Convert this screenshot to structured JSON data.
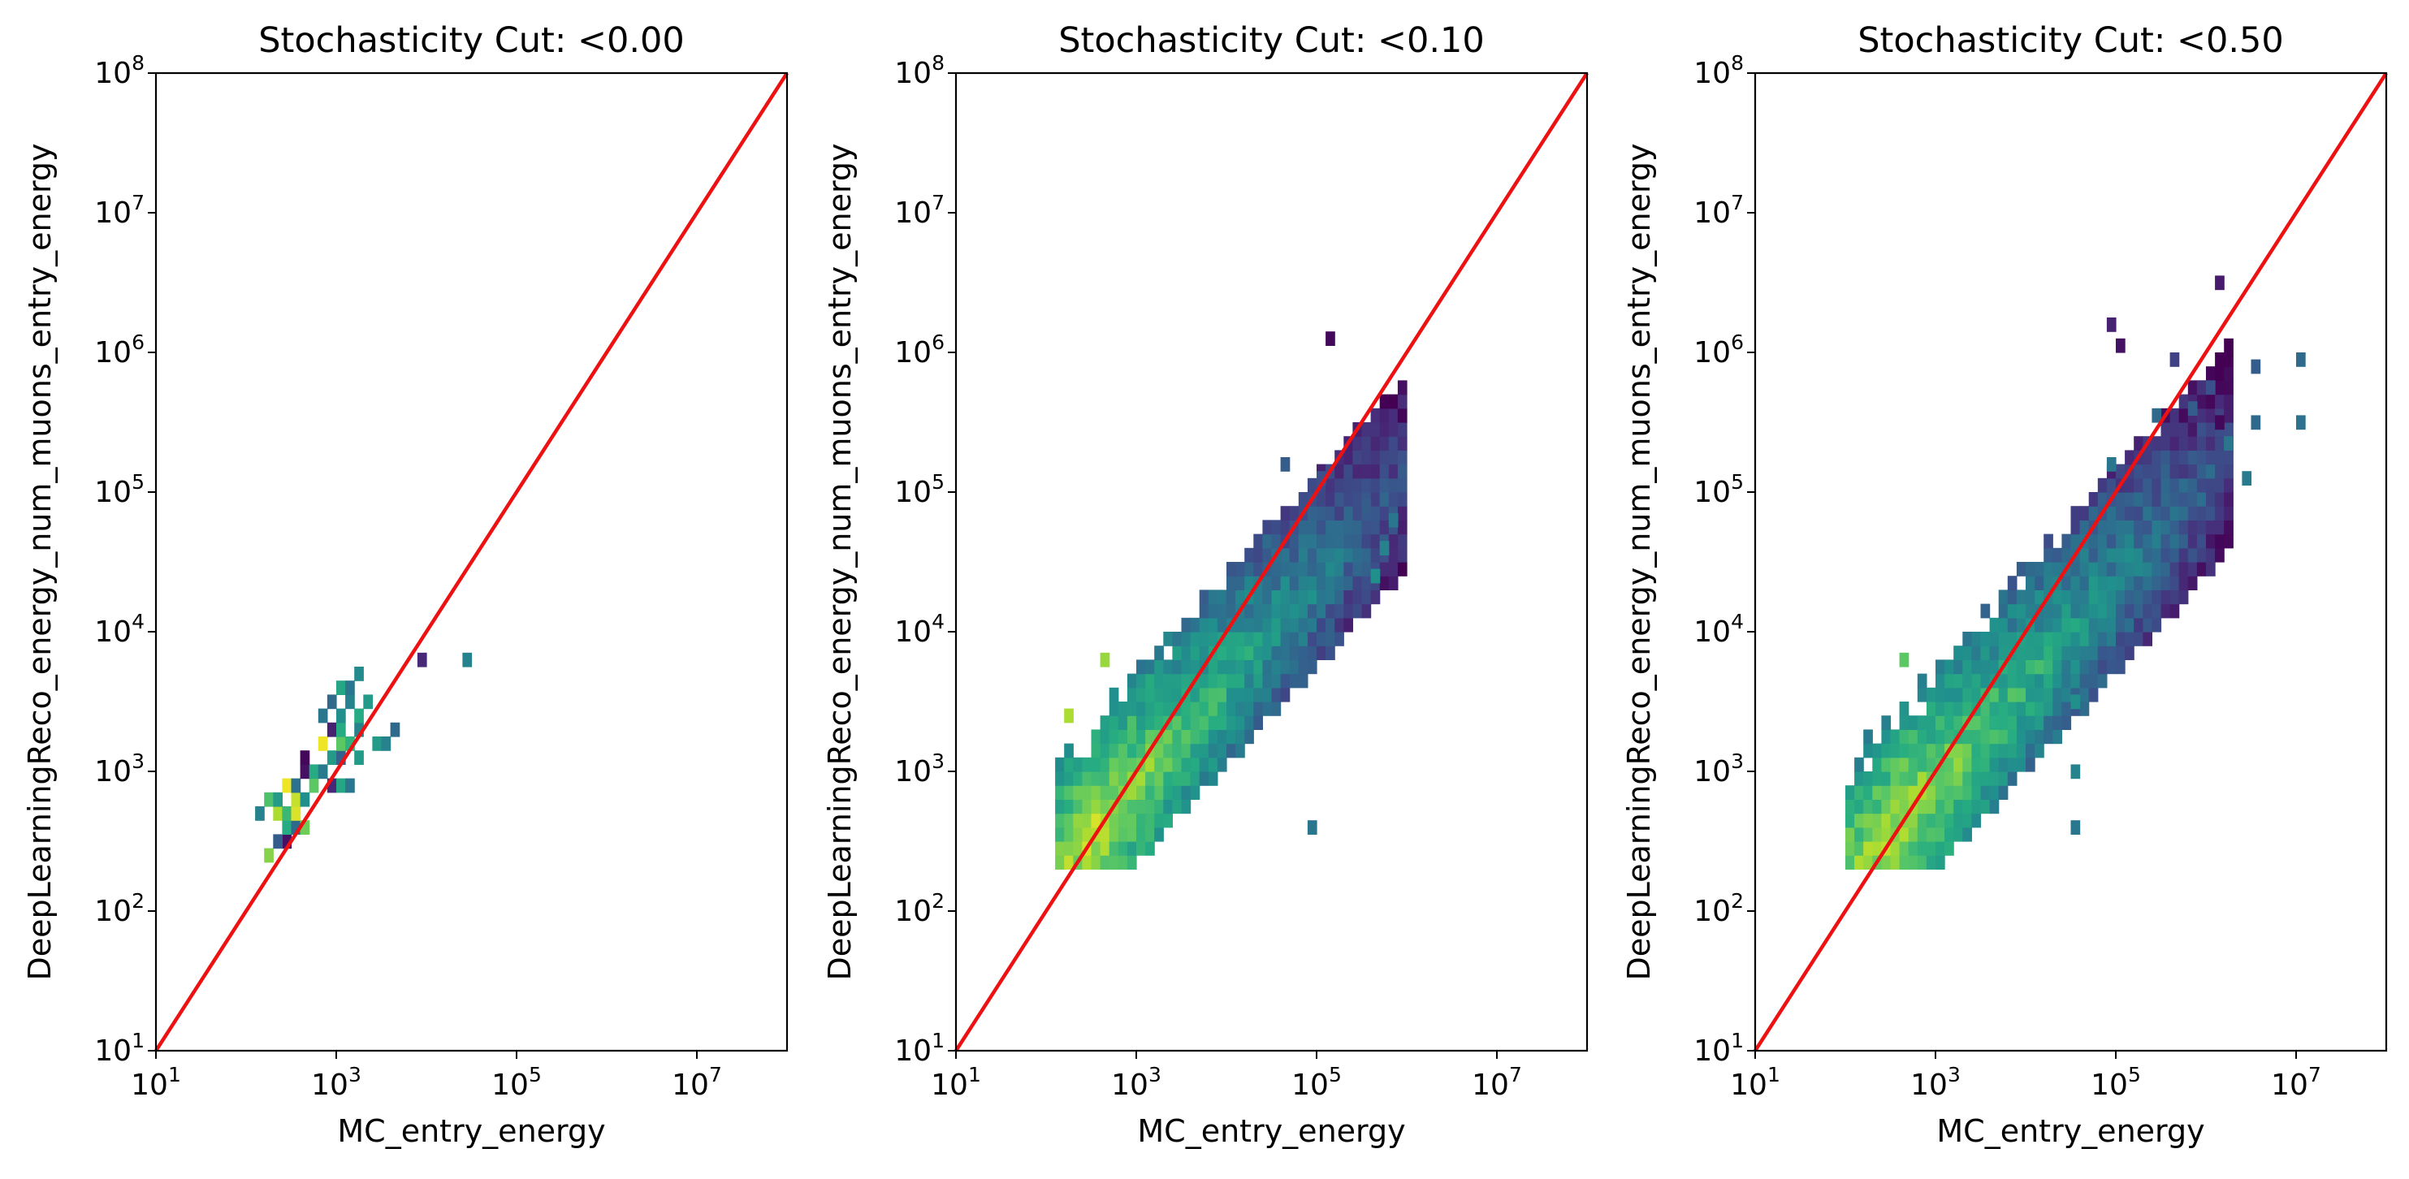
{
  "chart_data": [
    {
      "type": "heatmap",
      "title": "Stochasticity Cut: <0.00",
      "xlabel": "MC_entry_energy",
      "ylabel": "DeepLearningReco_energy_num_muons_entry_energy",
      "x_scale": "log",
      "y_scale": "log",
      "xlim": [
        10,
        100000000
      ],
      "ylim": [
        10,
        100000000
      ],
      "x_ticks": [
        {
          "base": "10",
          "exp": "1"
        },
        {
          "base": "10",
          "exp": "3"
        },
        {
          "base": "10",
          "exp": "5"
        },
        {
          "base": "10",
          "exp": "7"
        }
      ],
      "y_ticks": [
        {
          "base": "10",
          "exp": "1"
        },
        {
          "base": "10",
          "exp": "2"
        },
        {
          "base": "10",
          "exp": "3"
        },
        {
          "base": "10",
          "exp": "4"
        },
        {
          "base": "10",
          "exp": "5"
        },
        {
          "base": "10",
          "exp": "6"
        },
        {
          "base": "10",
          "exp": "7"
        },
        {
          "base": "10",
          "exp": "8"
        }
      ],
      "reference_line": {
        "from": [
          10,
          10
        ],
        "to": [
          100000000,
          100000000
        ],
        "color": "#ee1111"
      },
      "colormap": "viridis",
      "bins": {
        "log10_step": 0.1
      },
      "cells": [
        {
          "x": 2.25,
          "y": 2.4,
          "v": 0.82
        },
        {
          "x": 2.45,
          "y": 2.5,
          "v": 0.05
        },
        {
          "x": 2.35,
          "y": 2.5,
          "v": 0.3
        },
        {
          "x": 2.45,
          "y": 2.6,
          "v": 0.62
        },
        {
          "x": 2.55,
          "y": 2.6,
          "v": 0.35
        },
        {
          "x": 2.65,
          "y": 2.6,
          "v": 0.78
        },
        {
          "x": 2.15,
          "y": 2.7,
          "v": 0.45
        },
        {
          "x": 2.35,
          "y": 2.7,
          "v": 0.88
        },
        {
          "x": 2.45,
          "y": 2.7,
          "v": 0.68
        },
        {
          "x": 2.55,
          "y": 2.7,
          "v": 0.95
        },
        {
          "x": 2.25,
          "y": 2.8,
          "v": 0.72
        },
        {
          "x": 2.35,
          "y": 2.8,
          "v": 0.55
        },
        {
          "x": 2.55,
          "y": 2.8,
          "v": 0.92
        },
        {
          "x": 2.65,
          "y": 2.8,
          "v": 0.5
        },
        {
          "x": 2.45,
          "y": 2.9,
          "v": 0.98
        },
        {
          "x": 2.55,
          "y": 2.9,
          "v": 0.38
        },
        {
          "x": 2.75,
          "y": 2.9,
          "v": 0.75
        },
        {
          "x": 2.65,
          "y": 3.0,
          "v": 0.05
        },
        {
          "x": 2.75,
          "y": 3.0,
          "v": 0.62
        },
        {
          "x": 2.85,
          "y": 3.0,
          "v": 0.42
        },
        {
          "x": 2.95,
          "y": 2.9,
          "v": 0.12
        },
        {
          "x": 3.05,
          "y": 2.9,
          "v": 0.6
        },
        {
          "x": 3.15,
          "y": 2.9,
          "v": 0.4
        },
        {
          "x": 2.65,
          "y": 3.1,
          "v": 0.02
        },
        {
          "x": 2.95,
          "y": 3.1,
          "v": 0.55
        },
        {
          "x": 3.05,
          "y": 3.1,
          "v": 0.32
        },
        {
          "x": 3.25,
          "y": 3.1,
          "v": 0.55
        },
        {
          "x": 2.85,
          "y": 3.2,
          "v": 0.98
        },
        {
          "x": 3.05,
          "y": 3.2,
          "v": 0.75
        },
        {
          "x": 3.15,
          "y": 3.2,
          "v": 0.65
        },
        {
          "x": 2.95,
          "y": 3.3,
          "v": 0.1
        },
        {
          "x": 3.05,
          "y": 3.3,
          "v": 0.62
        },
        {
          "x": 3.25,
          "y": 3.3,
          "v": 0.45
        },
        {
          "x": 3.45,
          "y": 3.2,
          "v": 0.55
        },
        {
          "x": 3.65,
          "y": 3.3,
          "v": 0.35
        },
        {
          "x": 3.55,
          "y": 3.2,
          "v": 0.45
        },
        {
          "x": 2.85,
          "y": 3.4,
          "v": 0.4
        },
        {
          "x": 3.05,
          "y": 3.4,
          "v": 0.5
        },
        {
          "x": 3.25,
          "y": 3.4,
          "v": 0.62
        },
        {
          "x": 2.95,
          "y": 3.5,
          "v": 0.35
        },
        {
          "x": 3.15,
          "y": 3.5,
          "v": 0.45
        },
        {
          "x": 3.35,
          "y": 3.5,
          "v": 0.55
        },
        {
          "x": 3.05,
          "y": 3.6,
          "v": 0.6
        },
        {
          "x": 3.15,
          "y": 3.6,
          "v": 0.4
        },
        {
          "x": 3.25,
          "y": 3.7,
          "v": 0.48
        },
        {
          "x": 3.95,
          "y": 3.8,
          "v": 0.12
        },
        {
          "x": 4.45,
          "y": 3.8,
          "v": 0.45
        }
      ]
    },
    {
      "type": "heatmap",
      "title": "Stochasticity Cut: <0.10",
      "xlabel": "MC_entry_energy",
      "ylabel": "DeepLearningReco_energy_num_muons_entry_energy",
      "x_scale": "log",
      "y_scale": "log",
      "xlim": [
        10,
        100000000
      ],
      "ylim": [
        10,
        100000000
      ],
      "x_ticks": [
        {
          "base": "10",
          "exp": "1"
        },
        {
          "base": "10",
          "exp": "3"
        },
        {
          "base": "10",
          "exp": "5"
        },
        {
          "base": "10",
          "exp": "7"
        }
      ],
      "y_ticks": [
        {
          "base": "10",
          "exp": "1"
        },
        {
          "base": "10",
          "exp": "2"
        },
        {
          "base": "10",
          "exp": "3"
        },
        {
          "base": "10",
          "exp": "4"
        },
        {
          "base": "10",
          "exp": "5"
        },
        {
          "base": "10",
          "exp": "6"
        },
        {
          "base": "10",
          "exp": "7"
        },
        {
          "base": "10",
          "exp": "8"
        }
      ],
      "reference_line": {
        "from": [
          10,
          10
        ],
        "to": [
          100000000,
          100000000
        ],
        "color": "#ee1111"
      },
      "colormap": "viridis",
      "bins": {
        "log10_step": 0.1
      },
      "density_profile": {
        "x_range": [
          2.1,
          6.0
        ],
        "y_low_offset": -0.45,
        "y_high_offset": 0.75,
        "slope": 0.72,
        "intercept": 0.75,
        "peak_x": 2.6
      },
      "cells": [
        {
          "x": 5.15,
          "y": 6.1,
          "v": 0.02
        },
        {
          "x": 4.65,
          "y": 5.2,
          "v": 0.3
        },
        {
          "x": 5.05,
          "y": 5.1,
          "v": 0.25
        },
        {
          "x": 5.55,
          "y": 4.9,
          "v": 0.3
        },
        {
          "x": 5.85,
          "y": 4.8,
          "v": 0.4
        },
        {
          "x": 5.75,
          "y": 4.6,
          "v": 0.45
        },
        {
          "x": 5.65,
          "y": 4.4,
          "v": 0.5
        },
        {
          "x": 4.95,
          "y": 2.6,
          "v": 0.4
        },
        {
          "x": 2.65,
          "y": 3.8,
          "v": 0.85
        },
        {
          "x": 2.25,
          "y": 3.4,
          "v": 0.88
        }
      ]
    },
    {
      "type": "heatmap",
      "title": "Stochasticity Cut: <0.50",
      "xlabel": "MC_entry_energy",
      "ylabel": "DeepLearningReco_energy_num_muons_entry_energy",
      "x_scale": "log",
      "y_scale": "log",
      "xlim": [
        10,
        100000000
      ],
      "ylim": [
        10,
        100000000
      ],
      "x_ticks": [
        {
          "base": "10",
          "exp": "1"
        },
        {
          "base": "10",
          "exp": "3"
        },
        {
          "base": "10",
          "exp": "5"
        },
        {
          "base": "10",
          "exp": "7"
        }
      ],
      "y_ticks": [
        {
          "base": "10",
          "exp": "1"
        },
        {
          "base": "10",
          "exp": "2"
        },
        {
          "base": "10",
          "exp": "3"
        },
        {
          "base": "10",
          "exp": "4"
        },
        {
          "base": "10",
          "exp": "5"
        },
        {
          "base": "10",
          "exp": "6"
        },
        {
          "base": "10",
          "exp": "7"
        },
        {
          "base": "10",
          "exp": "8"
        }
      ],
      "reference_line": {
        "from": [
          10,
          10
        ],
        "to": [
          100000000,
          100000000
        ],
        "color": "#ee1111"
      },
      "colormap": "viridis",
      "bins": {
        "log10_step": 0.1
      },
      "density_profile": {
        "x_range": [
          2.0,
          6.3
        ],
        "y_low_offset": -0.5,
        "y_high_offset": 0.8,
        "slope": 0.72,
        "intercept": 0.75,
        "peak_x": 2.6
      },
      "cells": [
        {
          "x": 6.15,
          "y": 6.5,
          "v": 0.08
        },
        {
          "x": 4.95,
          "y": 6.2,
          "v": 0.1
        },
        {
          "x": 5.05,
          "y": 6.05,
          "v": 0.05
        },
        {
          "x": 5.65,
          "y": 5.95,
          "v": 0.2
        },
        {
          "x": 6.55,
          "y": 5.9,
          "v": 0.3
        },
        {
          "x": 7.05,
          "y": 5.95,
          "v": 0.35
        },
        {
          "x": 6.15,
          "y": 5.5,
          "v": 0.02
        },
        {
          "x": 6.55,
          "y": 5.5,
          "v": 0.35
        },
        {
          "x": 7.05,
          "y": 5.5,
          "v": 0.38
        },
        {
          "x": 5.95,
          "y": 5.75,
          "v": 0.15
        },
        {
          "x": 6.05,
          "y": 5.75,
          "v": 0.25
        },
        {
          "x": 5.85,
          "y": 5.6,
          "v": 0.3
        },
        {
          "x": 5.45,
          "y": 5.55,
          "v": 0.35
        },
        {
          "x": 6.25,
          "y": 5.35,
          "v": 0.4
        },
        {
          "x": 4.95,
          "y": 5.2,
          "v": 0.4
        },
        {
          "x": 4.55,
          "y": 3.5,
          "v": 0.5
        },
        {
          "x": 4.55,
          "y": 3.0,
          "v": 0.45
        },
        {
          "x": 4.55,
          "y": 2.6,
          "v": 0.4
        },
        {
          "x": 2.65,
          "y": 3.8,
          "v": 0.75
        },
        {
          "x": 6.45,
          "y": 5.1,
          "v": 0.42
        }
      ]
    }
  ]
}
